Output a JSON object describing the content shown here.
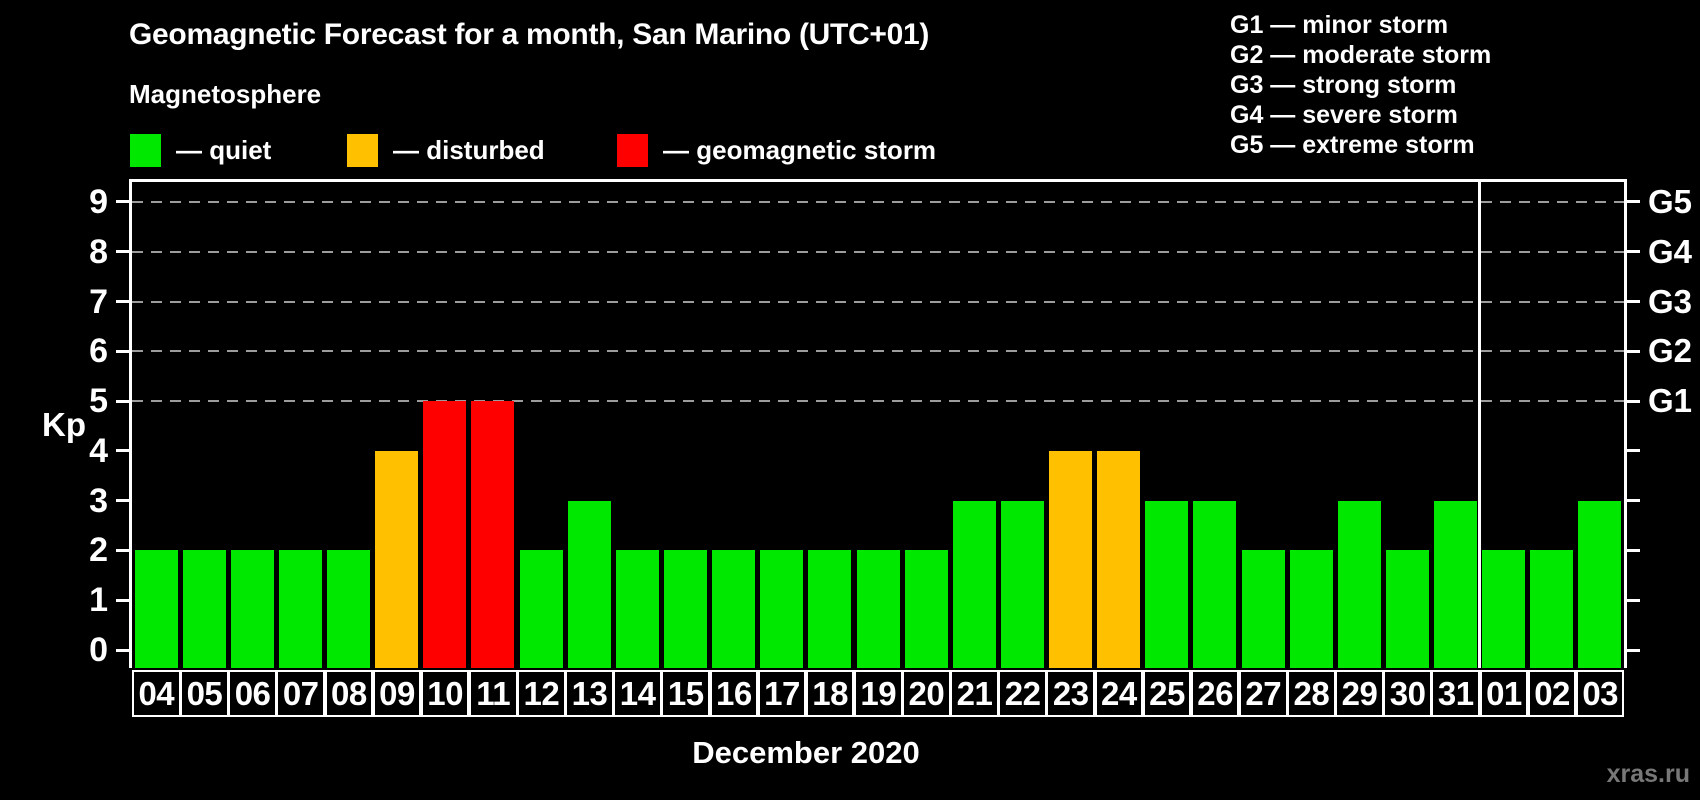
{
  "title": "Geomagnetic Forecast for a month, San Marino (UTC+01)",
  "subtitle": "Magnetosphere",
  "legend": {
    "items": [
      {
        "name": "quiet",
        "label": "— quiet",
        "color": "#00e800"
      },
      {
        "name": "disturbed",
        "label": "— disturbed",
        "color": "#ffc000"
      },
      {
        "name": "storm",
        "label": "— geomagnetic storm",
        "color": "#ff0000"
      }
    ]
  },
  "g_legend": [
    "G1 — minor storm",
    "G2 — moderate storm",
    "G3 — strong storm",
    "G4 — severe storm",
    "G5 — extreme storm"
  ],
  "watermark": "xras.ru",
  "chart_data": {
    "type": "bar",
    "title": "Geomagnetic Forecast for a month, San Marino (UTC+01)",
    "xlabel": "December 2020",
    "ylabel": "Kp",
    "ylim": [
      0,
      9
    ],
    "y_ticks": [
      0,
      1,
      2,
      3,
      4,
      5,
      6,
      7,
      8,
      9
    ],
    "gridlines_at": [
      5,
      6,
      7,
      8,
      9
    ],
    "right_axis_ticks": [
      {
        "kp": 5,
        "label": "G1"
      },
      {
        "kp": 6,
        "label": "G2"
      },
      {
        "kp": 7,
        "label": "G3"
      },
      {
        "kp": 8,
        "label": "G4"
      },
      {
        "kp": 9,
        "label": "G5"
      }
    ],
    "categories": [
      "04",
      "05",
      "06",
      "07",
      "08",
      "09",
      "10",
      "11",
      "12",
      "13",
      "14",
      "15",
      "16",
      "17",
      "18",
      "19",
      "20",
      "21",
      "22",
      "23",
      "24",
      "25",
      "26",
      "27",
      "28",
      "29",
      "30",
      "31",
      "01",
      "02",
      "03"
    ],
    "values": [
      2,
      2,
      2,
      2,
      2,
      4,
      5,
      5,
      2,
      3,
      2,
      2,
      2,
      2,
      2,
      2,
      2,
      3,
      3,
      4,
      4,
      3,
      3,
      2,
      2,
      3,
      2,
      3,
      2,
      2,
      3
    ],
    "states": [
      "quiet",
      "quiet",
      "quiet",
      "quiet",
      "quiet",
      "disturbed",
      "storm",
      "storm",
      "quiet",
      "quiet",
      "quiet",
      "quiet",
      "quiet",
      "quiet",
      "quiet",
      "quiet",
      "quiet",
      "quiet",
      "quiet",
      "disturbed",
      "disturbed",
      "quiet",
      "quiet",
      "quiet",
      "quiet",
      "quiet",
      "quiet",
      "quiet",
      "quiet",
      "quiet",
      "quiet"
    ],
    "color_map": {
      "quiet": "#00e800",
      "disturbed": "#ffc000",
      "storm": "#ff0000"
    },
    "month_separator_after_index": 27,
    "legend_note": "bars 04–31 are December 2020; bars 01–03 are the next month"
  }
}
